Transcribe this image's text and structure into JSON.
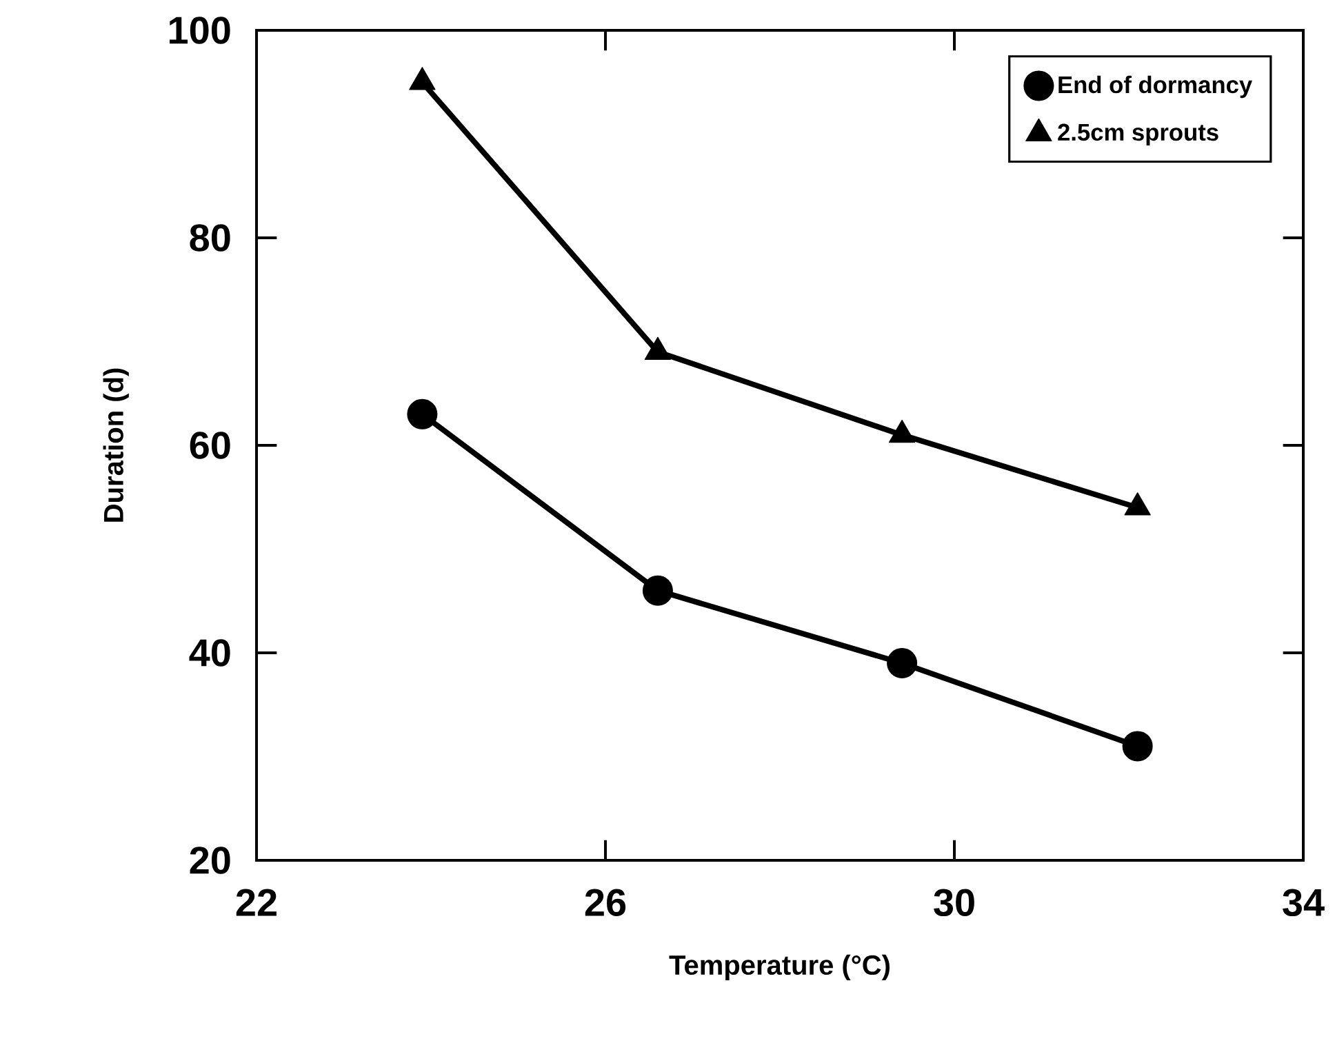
{
  "chart_data": {
    "type": "line",
    "xlabel": "Temperature (°C)",
    "ylabel": "Duration (d)",
    "x": [
      23.9,
      26.6,
      29.4,
      32.1
    ],
    "series": [
      {
        "name": "End of dormancy",
        "color": "#000000",
        "marker": "circle",
        "values": [
          63,
          46,
          39,
          31
        ]
      },
      {
        "name": "2.5cm sprouts",
        "color": "#000000",
        "marker": "triangle",
        "values": [
          95,
          69,
          61,
          54
        ]
      }
    ],
    "xlim": [
      22,
      34
    ],
    "xticks": [
      22,
      26,
      30,
      34
    ],
    "ylim": [
      20,
      100
    ],
    "yticks": [
      20,
      40,
      60,
      80,
      100
    ],
    "grid": false,
    "legend": "top right",
    "line_style": "solid"
  }
}
